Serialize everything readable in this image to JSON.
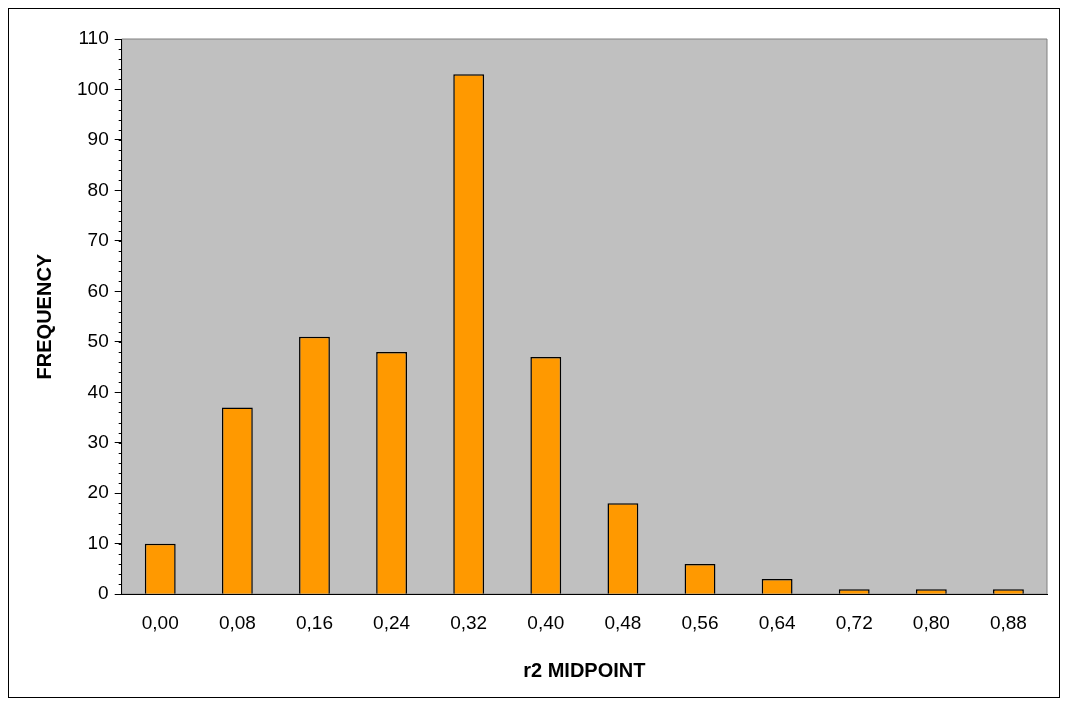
{
  "chart_data": {
    "type": "bar",
    "xlabel": "r2 MIDPOINT",
    "ylabel": "FREQUENCY",
    "categories": [
      "0,00",
      "0,08",
      "0,16",
      "0,24",
      "0,32",
      "0,40",
      "0,48",
      "0,56",
      "0,64",
      "0,72",
      "0,80",
      "0,88"
    ],
    "values": [
      10,
      37,
      51,
      48,
      103,
      47,
      18,
      6,
      3,
      1,
      1,
      1
    ],
    "color": "#ff9900",
    "ylim": [
      0,
      110
    ],
    "yticks": [
      0,
      10,
      20,
      30,
      40,
      50,
      60,
      70,
      80,
      90,
      100,
      110
    ],
    "grid": false,
    "legend": false
  }
}
